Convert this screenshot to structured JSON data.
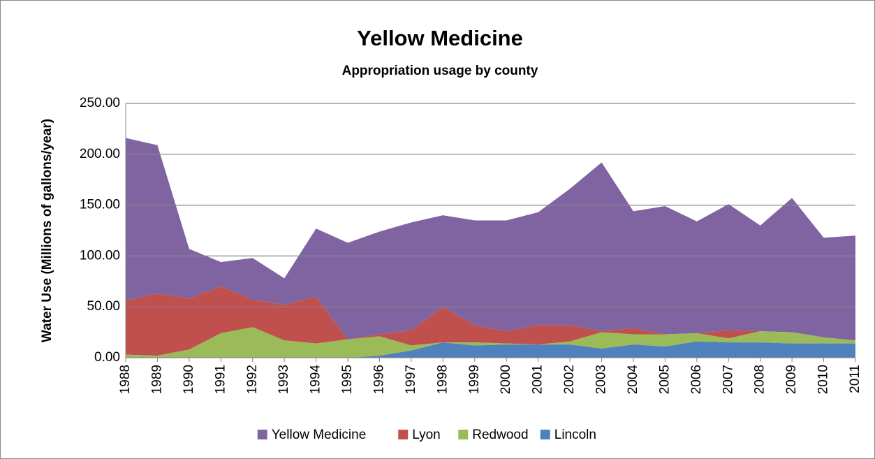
{
  "chart_data": {
    "type": "area",
    "stacked": true,
    "title": "Yellow Medicine",
    "subtitle": "Appropriation usage by county",
    "y_label": "Water Use (Millions of gallons/year)",
    "categories": [
      "1988",
      "1989",
      "1990",
      "1991",
      "1992",
      "1993",
      "1994",
      "1995",
      "1996",
      "1997",
      "1998",
      "1999",
      "2000",
      "2001",
      "2002",
      "2003",
      "2004",
      "2005",
      "2006",
      "2007",
      "2008",
      "2009",
      "2010",
      "2011"
    ],
    "series": [
      {
        "name": "Yellow Medicine",
        "color": "#8064a2",
        "values": [
          160,
          146,
          49,
          24,
          41,
          26,
          67,
          95,
          101,
          106,
          90,
          103,
          109,
          111,
          134,
          166,
          115,
          126,
          110,
          124,
          104,
          132,
          98,
          103
        ]
      },
      {
        "name": "Lyon",
        "color": "#c0504d",
        "values": [
          53,
          61,
          50,
          46,
          27,
          35,
          46,
          0,
          2,
          15,
          35,
          17,
          12,
          19,
          16,
          1,
          6,
          0,
          0,
          8,
          0,
          0,
          0,
          0
        ]
      },
      {
        "name": "Redwood",
        "color": "#9bbb59",
        "values": [
          3,
          2,
          8,
          24,
          30,
          17,
          14,
          18,
          19,
          5,
          0,
          3,
          1,
          0,
          3,
          16,
          10,
          12,
          8,
          4,
          11,
          11,
          6,
          3
        ]
      },
      {
        "name": "Lincoln",
        "color": "#4f81bd",
        "values": [
          0,
          0,
          0,
          0,
          0,
          0,
          0,
          0,
          2,
          7,
          15,
          12,
          13,
          13,
          13,
          9,
          13,
          11,
          16,
          15,
          15,
          14,
          14,
          14
        ]
      }
    ],
    "ylim": [
      0,
      250
    ],
    "yticks": [
      {
        "value": 0,
        "label": "0.00"
      },
      {
        "value": 50,
        "label": "50.00"
      },
      {
        "value": 100,
        "label": "100.00"
      },
      {
        "value": 150,
        "label": "150.00"
      },
      {
        "value": 200,
        "label": "200.00"
      },
      {
        "value": 250,
        "label": "250.00"
      }
    ],
    "grid": true,
    "legend": "bottom"
  }
}
